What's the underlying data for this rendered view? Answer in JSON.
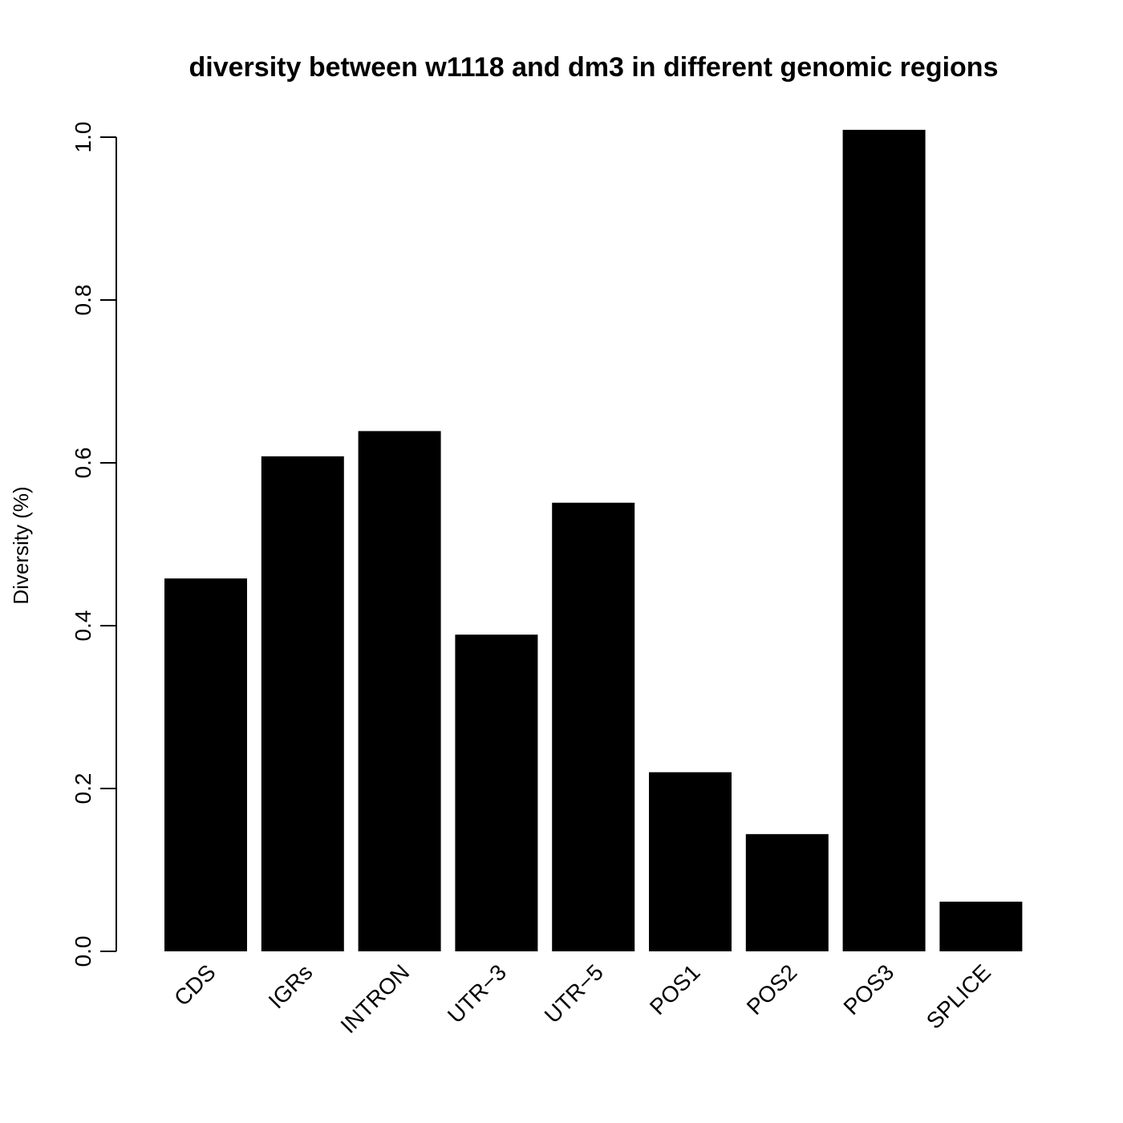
{
  "chart_data": {
    "type": "bar",
    "title": "diversity between w1118 and dm3 in different genomic regions",
    "xlabel": "",
    "ylabel": "Diversity (%)",
    "categories": [
      "CDS",
      "IGRs",
      "INTRON",
      "UTR−3",
      "UTR−5",
      "POS1",
      "POS2",
      "POS3",
      "SPLICE"
    ],
    "values": [
      0.458,
      0.608,
      0.639,
      0.389,
      0.551,
      0.22,
      0.144,
      1.009,
      0.061
    ],
    "ylim": [
      0,
      1.0
    ],
    "yticks": [
      "0.0",
      "0.2",
      "0.4",
      "0.6",
      "0.8",
      "1.0"
    ],
    "grid": false,
    "legend": "none",
    "bar_color": "#000000"
  }
}
